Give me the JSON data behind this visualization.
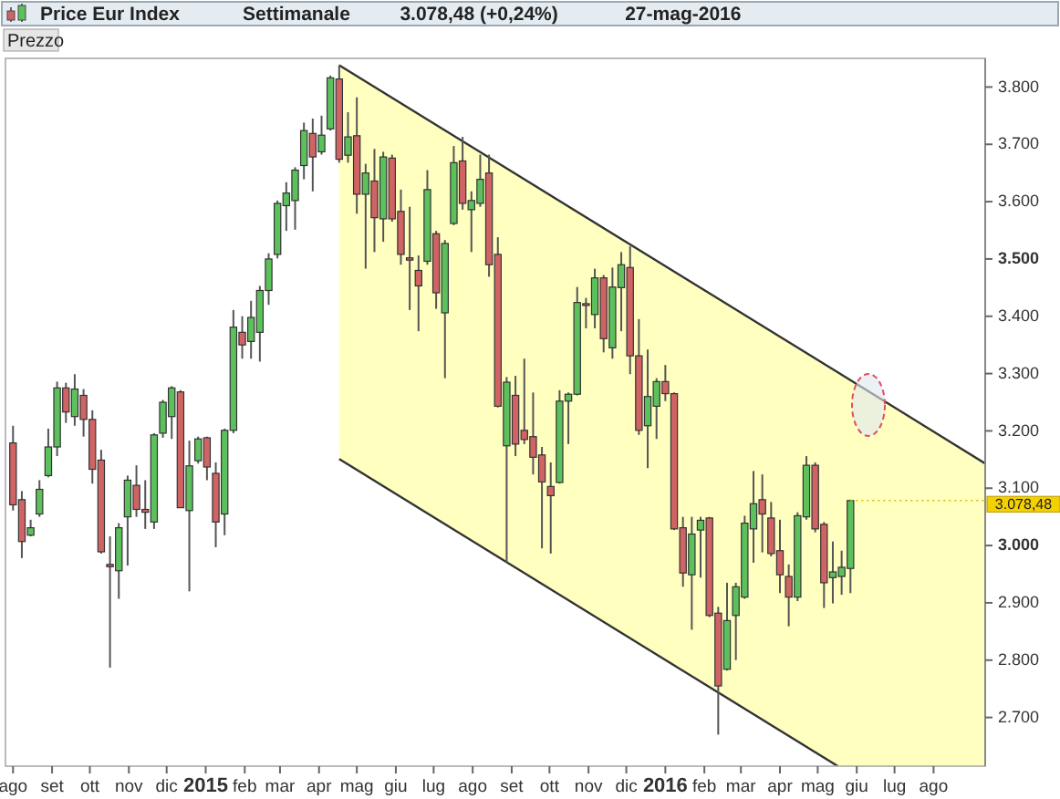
{
  "chart_data": {
    "type": "candlestick",
    "title": "Price Eur Index",
    "subtitle": "Settimanale",
    "ylabel": "Prezzo",
    "annotations": [
      "3.078,48 (+0,24%)",
      "27-mag-2016",
      {
        "text": "3.078,48",
        "x": "2016-05-27",
        "y": 3078.48
      }
    ],
    "xlim": [
      "2014-07-26",
      "2016-09-11"
    ],
    "xticks": [
      {
        "value": "2014-08-01",
        "label": "ago"
      },
      {
        "value": "2014-09-01",
        "label": "set"
      },
      {
        "value": "2014-10-01",
        "label": "ott"
      },
      {
        "value": "2014-11-01",
        "label": "nov"
      },
      {
        "value": "2014-12-01",
        "label": "dic"
      },
      {
        "value": "2015-01-01",
        "label": "2015"
      },
      {
        "value": "2015-02-01",
        "label": "feb"
      },
      {
        "value": "2015-03-01",
        "label": "mar"
      },
      {
        "value": "2015-04-01",
        "label": "apr"
      },
      {
        "value": "2015-05-01",
        "label": "mag"
      },
      {
        "value": "2015-06-01",
        "label": "giu"
      },
      {
        "value": "2015-07-01",
        "label": "lug"
      },
      {
        "value": "2015-08-01",
        "label": "ago"
      },
      {
        "value": "2015-09-01",
        "label": "set"
      },
      {
        "value": "2015-10-01",
        "label": "ott"
      },
      {
        "value": "2015-11-01",
        "label": "nov"
      },
      {
        "value": "2015-12-01",
        "label": "dic"
      },
      {
        "value": "2016-01-01",
        "label": "2016"
      },
      {
        "value": "2016-02-01",
        "label": "feb"
      },
      {
        "value": "2016-03-01",
        "label": "mar"
      },
      {
        "value": "2016-04-01",
        "label": "apr"
      },
      {
        "value": "2016-05-01",
        "label": "mag"
      },
      {
        "value": "2016-06-01",
        "label": "giu"
      },
      {
        "value": "2016-07-01",
        "label": "lug"
      },
      {
        "value": "2016-08-01",
        "label": "ago"
      }
    ],
    "ylim": [
      2615,
      3850
    ],
    "yticks": [
      {
        "value": 2700,
        "label": "2.700"
      },
      {
        "value": 2800,
        "label": "2.800"
      },
      {
        "value": 2900,
        "label": "2.900"
      },
      {
        "value": 3000,
        "label": "3.000"
      },
      {
        "value": 3100,
        "label": "3.100"
      },
      {
        "value": 3200,
        "label": "3.200"
      },
      {
        "value": 3300,
        "label": "3.300"
      },
      {
        "value": 3400,
        "label": "3.400"
      },
      {
        "value": 3500,
        "label": "3.500"
      },
      {
        "value": 3600,
        "label": "3.600"
      },
      {
        "value": 3700,
        "label": "3.700"
      },
      {
        "value": 3800,
        "label": "3.800"
      }
    ],
    "grid": false,
    "series": [
      {
        "color": "#5cc15c",
        "x": [
          "2014-08-15",
          "2014-08-22",
          "2014-08-29",
          "2014-09-05",
          "2014-09-19",
          "2014-10-24",
          "2014-10-31",
          "2014-11-21",
          "2014-11-28",
          "2014-12-05",
          "2014-12-19",
          "2014-12-26",
          "2015-01-16",
          "2015-01-23",
          "2015-02-06",
          "2015-02-13",
          "2015-02-20",
          "2015-02-27",
          "2015-03-06",
          "2015-03-13",
          "2015-03-20",
          "2015-04-03",
          "2015-04-10",
          "2015-04-24",
          "2015-05-08",
          "2015-05-22",
          "2015-06-26",
          "2015-07-10",
          "2015-07-17",
          "2015-07-31",
          "2015-08-07",
          "2015-08-28",
          "2015-10-09",
          "2015-10-16",
          "2015-10-23",
          "2015-11-06",
          "2015-11-20",
          "2015-11-27",
          "2015-12-18",
          "2015-12-25",
          "2016-01-22",
          "2016-01-29",
          "2016-02-19",
          "2016-02-26",
          "2016-03-04",
          "2016-03-11",
          "2016-04-15",
          "2016-04-22",
          "2016-05-13",
          "2016-05-20",
          "2016-05-27"
        ],
        "ohlc": [
          [
            3018,
            3045,
            3016,
            3031
          ],
          [
            3055,
            3114,
            3050,
            3098
          ],
          [
            3122,
            3204,
            3119,
            3172
          ],
          [
            3172,
            3286,
            3156,
            3275
          ],
          [
            3225,
            3299,
            3209,
            3273
          ],
          [
            2956,
            3039,
            2907,
            3031
          ],
          [
            3050,
            3122,
            2965,
            3114
          ],
          [
            3041,
            3196,
            3029,
            3193
          ],
          [
            3196,
            3254,
            3188,
            3250
          ],
          [
            3225,
            3278,
            3186,
            3275
          ],
          [
            3061,
            3183,
            2920,
            3139
          ],
          [
            3148,
            3190,
            3143,
            3186
          ],
          [
            3055,
            3204,
            3018,
            3201
          ],
          [
            3201,
            3411,
            3196,
            3381
          ],
          [
            3356,
            3427,
            3326,
            3398
          ],
          [
            3372,
            3453,
            3321,
            3445
          ],
          [
            3445,
            3510,
            3420,
            3500
          ],
          [
            3508,
            3602,
            3501,
            3597
          ],
          [
            3593,
            3634,
            3549,
            3615
          ],
          [
            3602,
            3660,
            3551,
            3655
          ],
          [
            3663,
            3738,
            3639,
            3724
          ],
          [
            3687,
            3750,
            3682,
            3716
          ],
          [
            3727,
            3820,
            3724,
            3816
          ],
          [
            3681,
            3756,
            3668,
            3713
          ],
          [
            3613,
            3666,
            3483,
            3650
          ],
          [
            3570,
            3687,
            3530,
            3678
          ],
          [
            3496,
            3655,
            3490,
            3621
          ],
          [
            3406,
            3533,
            3292,
            3527
          ],
          [
            3562,
            3697,
            3559,
            3668
          ],
          [
            3586,
            3618,
            3512,
            3602
          ],
          [
            3597,
            3682,
            3591,
            3639
          ],
          [
            3174,
            3294,
            2970,
            3285
          ],
          [
            3110,
            3271,
            3108,
            3252
          ],
          [
            3252,
            3267,
            3177,
            3264
          ],
          [
            3264,
            3451,
            3262,
            3424
          ],
          [
            3403,
            3483,
            3379,
            3467
          ],
          [
            3345,
            3485,
            3326,
            3451
          ],
          [
            3450,
            3512,
            3374,
            3490
          ],
          [
            3209,
            3342,
            3135,
            3260
          ],
          [
            3243,
            3292,
            3186,
            3286
          ],
          [
            2949,
            3050,
            2853,
            3020
          ],
          [
            3027,
            3050,
            2944,
            3044
          ],
          [
            2784,
            2935,
            2782,
            2869
          ],
          [
            2878,
            2935,
            2800,
            2928
          ],
          [
            2910,
            3052,
            2907,
            3039
          ],
          [
            3029,
            3130,
            2970,
            3073
          ],
          [
            2910,
            3058,
            2903,
            3052
          ],
          [
            3050,
            3156,
            3045,
            3140
          ],
          [
            2944,
            3007,
            2899,
            2954
          ],
          [
            2946,
            2991,
            2914,
            2962
          ],
          [
            2960,
            3080,
            2917,
            3078.48
          ]
        ]
      },
      {
        "color": "#d06464",
        "x": [
          "2014-08-01",
          "2014-08-08",
          "2014-09-12",
          "2014-09-26",
          "2014-10-03",
          "2014-10-10",
          "2014-10-17",
          "2014-11-07",
          "2014-11-14",
          "2014-12-12",
          "2015-01-02",
          "2015-01-09",
          "2015-01-30",
          "2015-03-27",
          "2015-04-17",
          "2015-05-01",
          "2015-05-15",
          "2015-05-29",
          "2015-06-05",
          "2015-06-12",
          "2015-06-19",
          "2015-07-03",
          "2015-07-24",
          "2015-08-14",
          "2015-08-21",
          "2015-09-04",
          "2015-09-11",
          "2015-09-18",
          "2015-09-25",
          "2015-10-02",
          "2015-10-30",
          "2015-11-13",
          "2015-12-04",
          "2015-12-11",
          "2016-01-01",
          "2016-01-08",
          "2016-01-15",
          "2016-02-05",
          "2016-02-12",
          "2016-03-18",
          "2016-03-25",
          "2016-04-01",
          "2016-04-08",
          "2016-04-29",
          "2016-05-06"
        ],
        "ohlc": [
          [
            3179,
            3209,
            3061,
            3071
          ],
          [
            3080,
            3095,
            2978,
            3007
          ],
          [
            3275,
            3284,
            3214,
            3233
          ],
          [
            3262,
            3273,
            3190,
            3220
          ],
          [
            3220,
            3236,
            3108,
            3133
          ],
          [
            3149,
            3167,
            2986,
            2989
          ],
          [
            2967,
            3016,
            2787,
            2963
          ],
          [
            3105,
            3140,
            3050,
            3063
          ],
          [
            3063,
            3114,
            3029,
            3058
          ],
          [
            3268,
            3271,
            3066,
            3066
          ],
          [
            3188,
            3190,
            3114,
            3137
          ],
          [
            3126,
            3145,
            2997,
            3041
          ],
          [
            3372,
            3400,
            3326,
            3350
          ],
          [
            3719,
            3745,
            3618,
            3678
          ],
          [
            3814,
            3838,
            3668,
            3674
          ],
          [
            3715,
            3782,
            3579,
            3613
          ],
          [
            3636,
            3692,
            3512,
            3572
          ],
          [
            3676,
            3682,
            3565,
            3570
          ],
          [
            3583,
            3621,
            3490,
            3508
          ],
          [
            3502,
            3591,
            3411,
            3498
          ],
          [
            3480,
            3506,
            3374,
            3453
          ],
          [
            3544,
            3549,
            3413,
            3441
          ],
          [
            3671,
            3713,
            3586,
            3597
          ],
          [
            3650,
            3682,
            3469,
            3490
          ],
          [
            3508,
            3538,
            3241,
            3243
          ],
          [
            3262,
            3296,
            3156,
            3177
          ],
          [
            3201,
            3326,
            3177,
            3185
          ],
          [
            3190,
            3267,
            3124,
            3154
          ],
          [
            3158,
            3172,
            2995,
            3111
          ],
          [
            3103,
            3145,
            2986,
            3087
          ],
          [
            3422,
            3432,
            3379,
            3420
          ],
          [
            3467,
            3472,
            3337,
            3361
          ],
          [
            3485,
            3522,
            3299,
            3331
          ],
          [
            3331,
            3395,
            3193,
            3201
          ],
          [
            3286,
            3315,
            3252,
            3265
          ],
          [
            3265,
            3267,
            3027,
            3029
          ],
          [
            3031,
            3050,
            2928,
            2952
          ],
          [
            3048,
            3050,
            2875,
            2878
          ],
          [
            2882,
            2893,
            2670,
            2755
          ],
          [
            3080,
            3124,
            2988,
            3055
          ],
          [
            3048,
            3076,
            2981,
            2986
          ],
          [
            2991,
            3045,
            2917,
            2949
          ],
          [
            2946,
            2967,
            2859,
            2910
          ],
          [
            3140,
            3145,
            3023,
            3029
          ],
          [
            3037,
            3041,
            2891,
            2935
          ]
        ]
      },
      {
        "type": "line",
        "color": "#333333",
        "x": [
          "2015-04-17",
          "2016-05-17",
          "2016-09-11"
        ],
        "values": [
          3838,
          3302,
          3143
        ],
        "upper": [
          3838,
          3302,
          3143
        ],
        "lower": [
          3151,
          2615,
          2615
        ]
      },
      {
        "type": "line",
        "color": "#333333",
        "x": [
          "2015-04-17",
          "2016-05-17"
        ],
        "values": [
          3151,
          2615
        ]
      }
    ]
  }
}
